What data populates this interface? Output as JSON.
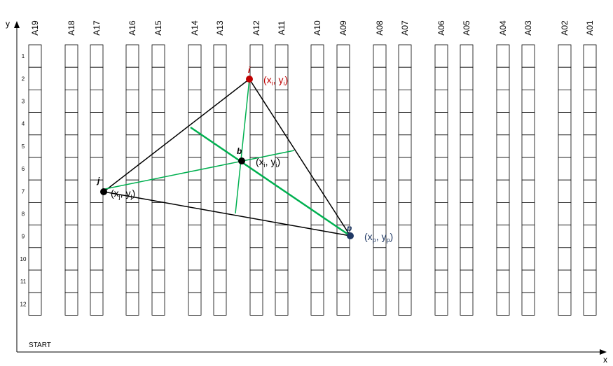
{
  "axes": {
    "x_label": "x",
    "y_label": "y",
    "start_label": "START"
  },
  "columns": [
    "A19",
    "A18",
    "A17",
    "A16",
    "A15",
    "A14",
    "A13",
    "A12",
    "A11",
    "A10",
    "A09",
    "A08",
    "A07",
    "A06",
    "A05",
    "A04",
    "A03",
    "A02",
    "A01"
  ],
  "rows": [
    "1",
    "2",
    "3",
    "4",
    "5",
    "6",
    "7",
    "8",
    "9",
    "10",
    "11",
    "12"
  ],
  "points": {
    "i": {
      "letter": "i",
      "coord_open": "(x",
      "coord_sub_x": "i",
      "coord_mid": ", y",
      "coord_sub_y": "i",
      "coord_close": ")",
      "color": "#c00000"
    },
    "j": {
      "letter": "j",
      "coord_open": "(x",
      "coord_sub_x": "j",
      "coord_mid": ", y",
      "coord_sub_y": "j",
      "coord_close": ")",
      "color": "#000000"
    },
    "b": {
      "letter": "b",
      "coord_open": "(x",
      "coord_sub_x": "i",
      "coord_mid": ", y",
      "coord_sub_y": "i",
      "coord_close": ")",
      "color": "#000000"
    },
    "p": {
      "letter": "p",
      "coord_open": "(x",
      "coord_sub_x": "p",
      "coord_mid": ", y",
      "coord_sub_y": "p",
      "coord_close": ")",
      "color": "#1f3864"
    }
  },
  "colors": {
    "triangle": "#000000",
    "green_lines": "#00b050",
    "grid": "#000000"
  }
}
